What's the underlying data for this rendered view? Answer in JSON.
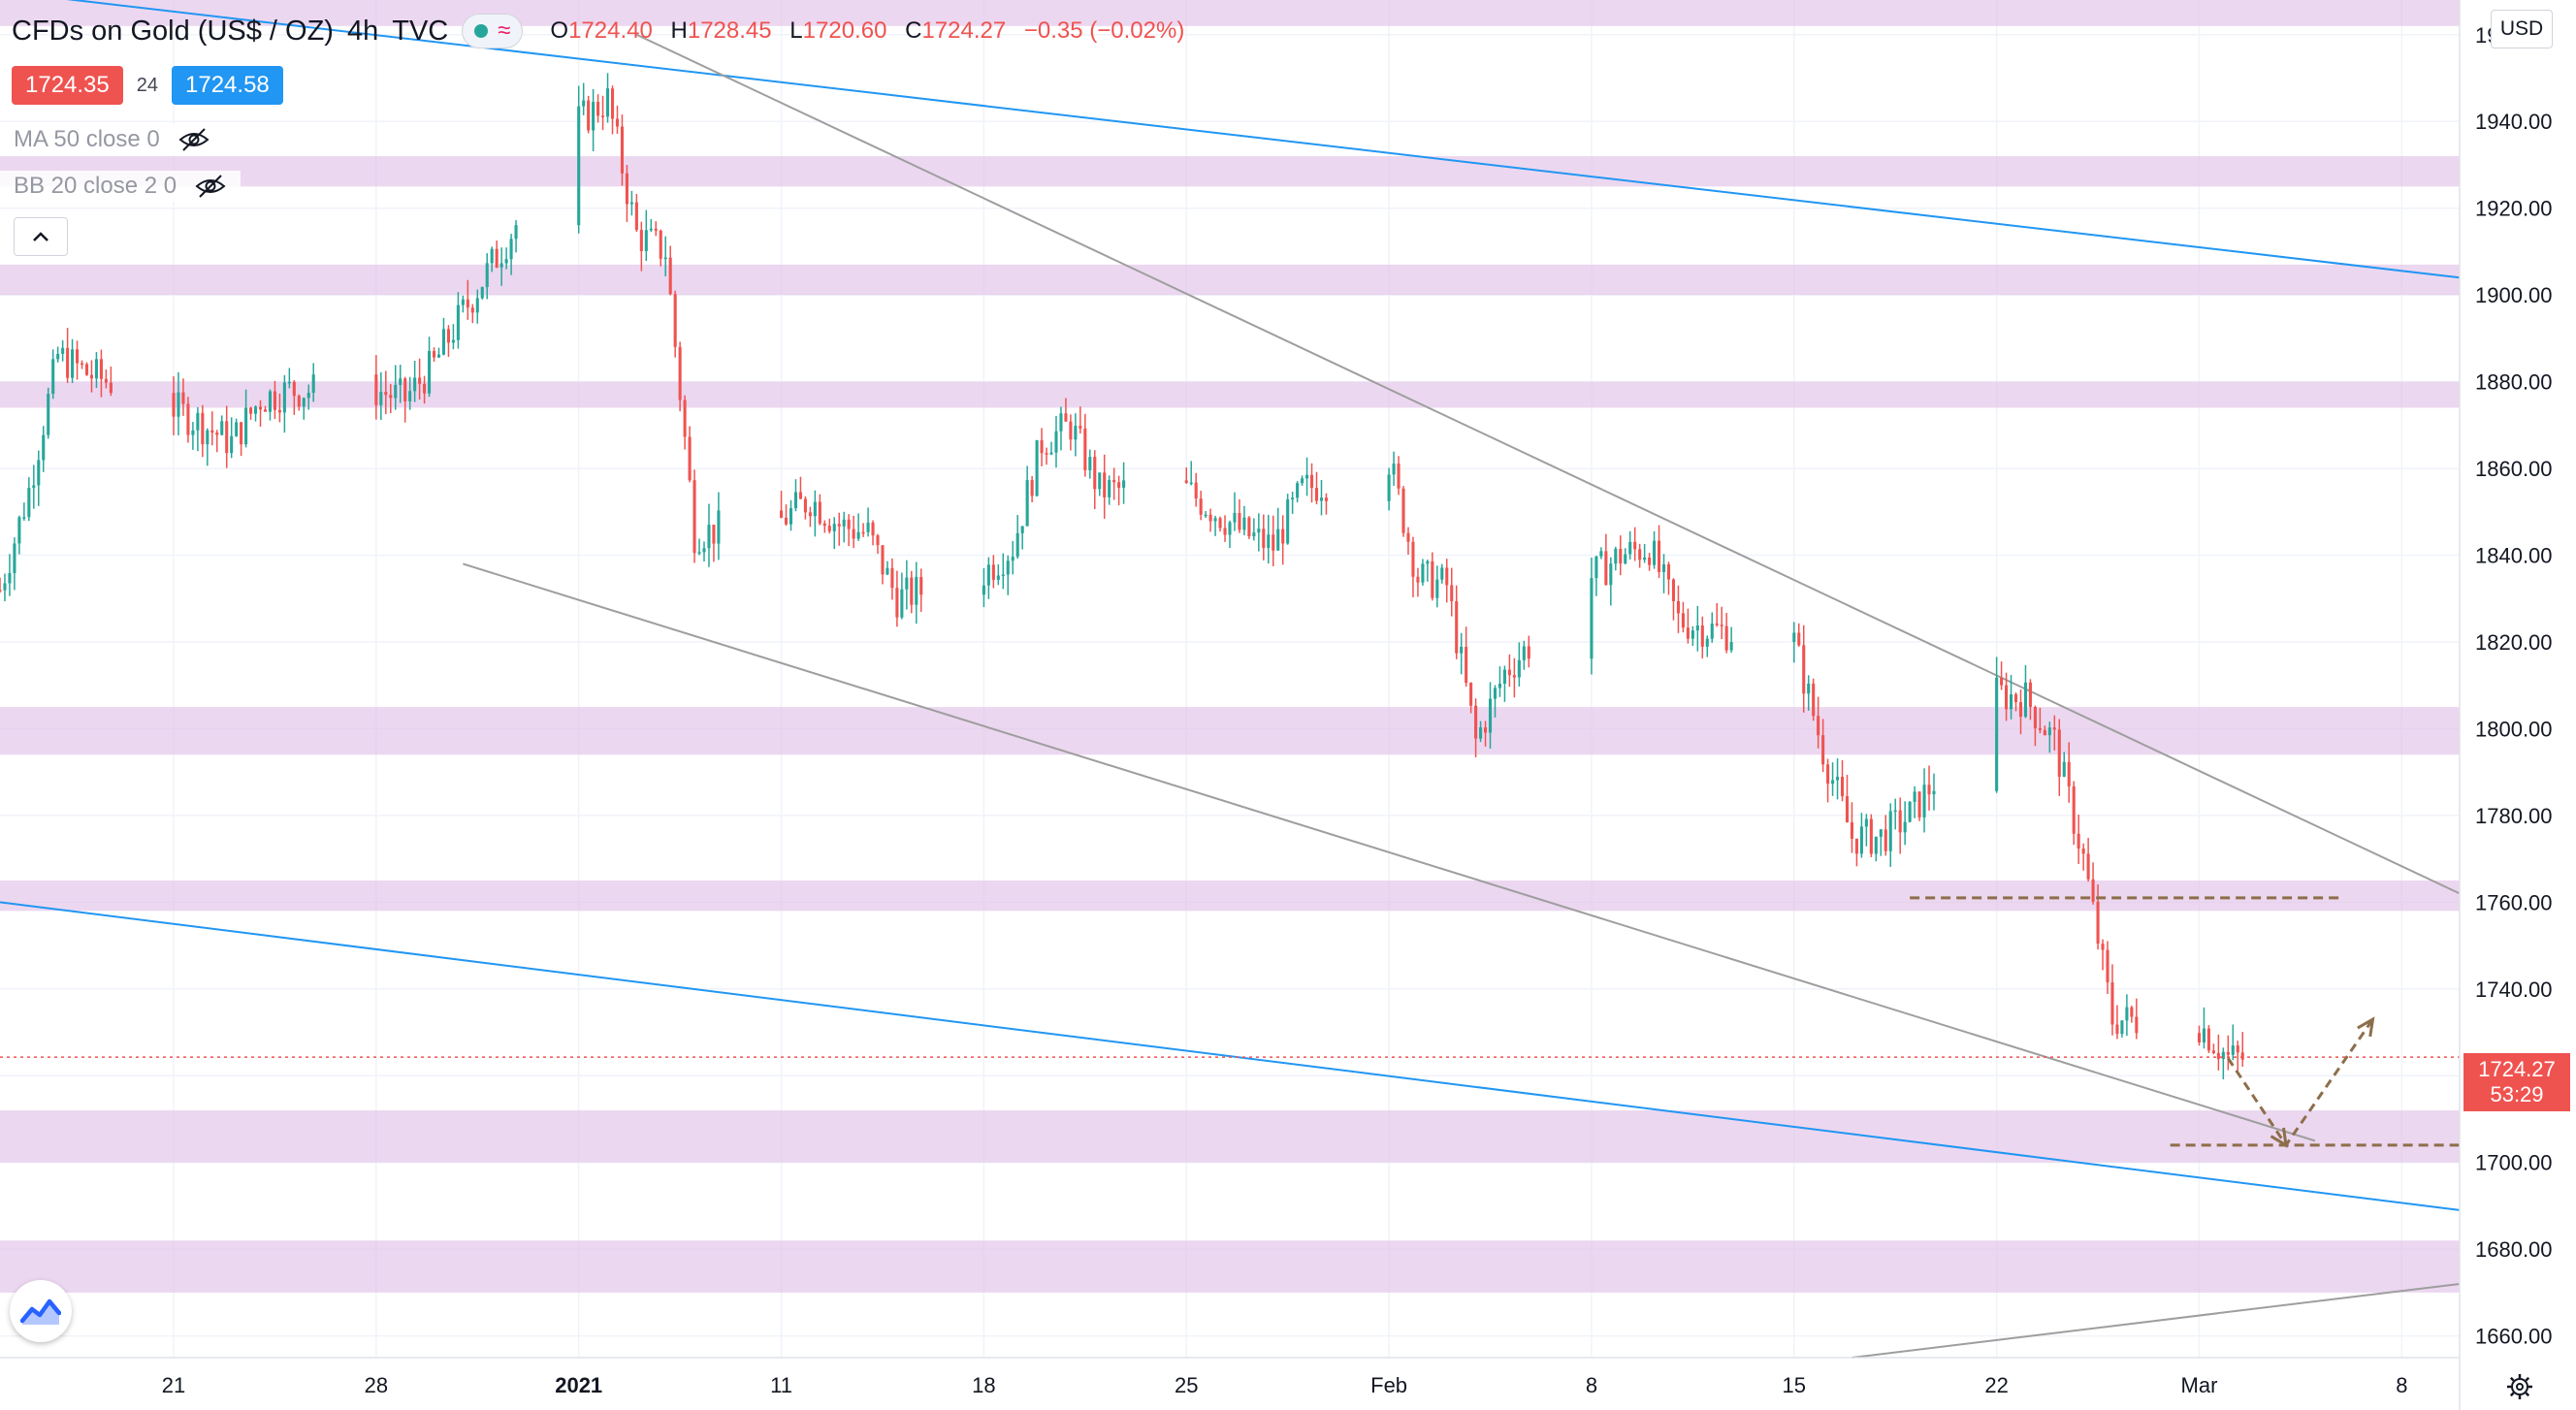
{
  "header": {
    "symbol": "CFDs on Gold (US$ / OZ)",
    "timeframe": "4h",
    "source": "TVC",
    "ohlc": {
      "o_label": "O",
      "o": "1724.40",
      "h_label": "H",
      "h": "1728.45",
      "l_label": "L",
      "l": "1720.60",
      "c_label": "C",
      "c": "1724.27",
      "change": "−0.35 (−0.02%)"
    }
  },
  "quote": {
    "sell": "1724.35",
    "spread": "24",
    "buy": "1724.58"
  },
  "indicators": [
    {
      "label": "MA 50 close 0",
      "icon": "eye-off-icon"
    },
    {
      "label": "BB 20 close 2 0",
      "icon": "eye-off-icon"
    }
  ],
  "currency": "USD",
  "last_price": {
    "value": "1724.27",
    "countdown": "53:29"
  },
  "colors": {
    "up": "#26a69a",
    "down": "#ef5350",
    "zone": "#e1bee7",
    "blue_line": "#2196f3",
    "grey_line": "#9e9e9e",
    "drawing": "#8d6e4a"
  },
  "chart_data": {
    "type": "candlestick",
    "title": "CFDs on Gold (US$ / OZ), 4h, TVC",
    "xlabel": "",
    "ylabel": "",
    "ylim": [
      1655,
      1968
    ],
    "y_ticks": [
      1660,
      1680,
      1700,
      1720,
      1740,
      1760,
      1780,
      1800,
      1820,
      1840,
      1860,
      1880,
      1900,
      1920,
      1940,
      1960
    ],
    "x_ticks": [
      {
        "label": "21",
        "date": "2020-12-21"
      },
      {
        "label": "28",
        "date": "2020-12-28"
      },
      {
        "label": "2021",
        "date": "2021-01-04",
        "bold": true
      },
      {
        "label": "11",
        "date": "2021-01-11"
      },
      {
        "label": "18",
        "date": "2021-01-18"
      },
      {
        "label": "25",
        "date": "2021-01-25"
      },
      {
        "label": "Feb",
        "date": "2021-02-01"
      },
      {
        "label": "8",
        "date": "2021-02-08"
      },
      {
        "label": "15",
        "date": "2021-02-15"
      },
      {
        "label": "22",
        "date": "2021-02-22"
      },
      {
        "label": "Mar",
        "date": "2021-03-01"
      },
      {
        "label": "8",
        "date": "2021-03-08"
      }
    ],
    "date_range": [
      "2020-12-15",
      "2021-03-10"
    ],
    "price_path": [
      [
        "2020-12-15",
        1832
      ],
      [
        "2020-12-16",
        1855
      ],
      [
        "2020-12-17",
        1886
      ],
      [
        "2020-12-18",
        1882
      ],
      [
        "2020-12-21",
        1874
      ],
      [
        "2020-12-22",
        1870
      ],
      [
        "2020-12-23",
        1866
      ],
      [
        "2020-12-24",
        1876
      ],
      [
        "2020-12-25",
        1878
      ],
      [
        "2020-12-28",
        1878
      ],
      [
        "2020-12-29",
        1876
      ],
      [
        "2020-12-30",
        1884
      ],
      [
        "2020-12-31",
        1896
      ],
      [
        "2021-01-04",
        1940
      ],
      [
        "2021-01-05",
        1945
      ],
      [
        "2021-01-06",
        1914
      ],
      [
        "2021-01-07",
        1910
      ],
      [
        "2021-01-08",
        1845
      ],
      [
        "2021-01-11",
        1848
      ],
      [
        "2021-01-12",
        1853
      ],
      [
        "2021-01-13",
        1847
      ],
      [
        "2021-01-14",
        1845
      ],
      [
        "2021-01-15",
        1830
      ],
      [
        "2021-01-18",
        1836
      ],
      [
        "2021-01-19",
        1842
      ],
      [
        "2021-01-20",
        1866
      ],
      [
        "2021-01-21",
        1870
      ],
      [
        "2021-01-22",
        1855
      ],
      [
        "2021-01-25",
        1855
      ],
      [
        "2021-01-26",
        1850
      ],
      [
        "2021-01-27",
        1845
      ],
      [
        "2021-01-28",
        1842
      ],
      [
        "2021-01-29",
        1855
      ],
      [
        "2021-02-01",
        1862
      ],
      [
        "2021-02-02",
        1835
      ],
      [
        "2021-02-03",
        1833
      ],
      [
        "2021-02-04",
        1797
      ],
      [
        "2021-02-05",
        1813
      ],
      [
        "2021-02-08",
        1835
      ],
      [
        "2021-02-09",
        1840
      ],
      [
        "2021-02-10",
        1842
      ],
      [
        "2021-02-11",
        1825
      ],
      [
        "2021-02-12",
        1823
      ],
      [
        "2021-02-15",
        1820
      ],
      [
        "2021-02-16",
        1795
      ],
      [
        "2021-02-17",
        1775
      ],
      [
        "2021-02-18",
        1775
      ],
      [
        "2021-02-19",
        1780
      ],
      [
        "2021-02-22",
        1808
      ],
      [
        "2021-02-23",
        1807
      ],
      [
        "2021-02-24",
        1797
      ],
      [
        "2021-02-25",
        1770
      ],
      [
        "2021-02-26",
        1733
      ],
      [
        "2021-03-01",
        1732
      ],
      [
        "2021-03-02",
        1724
      ]
    ],
    "zones": [
      [
        1962,
        1969
      ],
      [
        1925,
        1932
      ],
      [
        1900,
        1907
      ],
      [
        1874,
        1880
      ],
      [
        1794,
        1805
      ],
      [
        1758,
        1765
      ],
      [
        1700,
        1712
      ],
      [
        1670,
        1682
      ]
    ],
    "trendlines": [
      {
        "name": "blue-upper",
        "color": "blue",
        "from": [
          "2020-12-15",
          1970
        ],
        "to": [
          "2021-03-10",
          1904
        ]
      },
      {
        "name": "blue-lower",
        "color": "blue",
        "from": [
          "2020-12-15",
          1760
        ],
        "to": [
          "2021-03-10",
          1689
        ]
      },
      {
        "name": "channel-upper",
        "color": "grey",
        "from": [
          "2021-01-06",
          1960
        ],
        "to": [
          "2021-03-10",
          1762
        ]
      },
      {
        "name": "channel-lower",
        "color": "grey",
        "from": [
          "2020-12-31",
          1838
        ],
        "to": [
          "2021-03-05",
          1705
        ]
      },
      {
        "name": "rising-support",
        "color": "grey",
        "from": [
          "2021-02-17",
          1655
        ],
        "to": [
          "2021-03-10",
          1672
        ]
      }
    ],
    "levels": [
      {
        "name": "resistance-dashed",
        "value": 1761,
        "from": "2021-02-19",
        "to": "2021-03-06"
      },
      {
        "name": "target-dashed",
        "value": 1704,
        "from": "2021-02-28",
        "to": "2021-03-10"
      }
    ],
    "last_price_line": 1724.27,
    "projection": [
      [
        "2021-03-02",
        1724
      ],
      [
        "2021-03-04",
        1704
      ],
      [
        "2021-03-07",
        1733
      ]
    ]
  }
}
